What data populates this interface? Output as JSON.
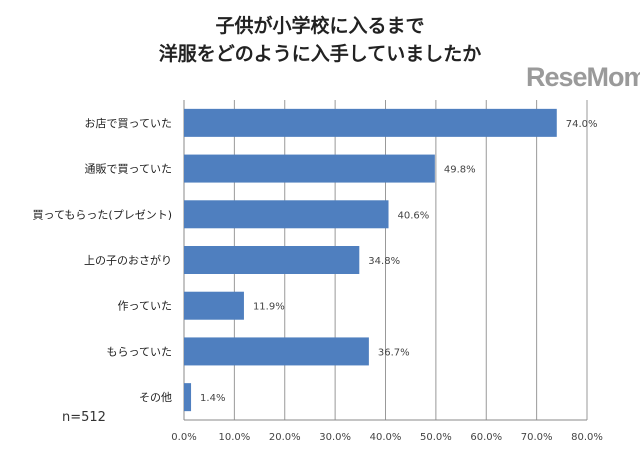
{
  "chart_data": {
    "type": "bar",
    "orientation": "horizontal",
    "title": [
      "子供が小学校に入るまで",
      "洋服をどのように入手していましたか"
    ],
    "categories": [
      "お店で買っていた",
      "通販で買っていた",
      "買ってもらった(プレゼント)",
      "上の子のおさがり",
      "作っていた",
      "もらっていた",
      "その他"
    ],
    "values": [
      74.0,
      49.8,
      40.6,
      34.8,
      11.9,
      36.7,
      1.4
    ],
    "data_labels": [
      "74.0%",
      "49.8%",
      "40.6%",
      "34.8%",
      "11.9%",
      "36.7%",
      "1.4%"
    ],
    "xlim": [
      0,
      80
    ],
    "xticks": [
      "0.0%",
      "10.0%",
      "20.0%",
      "30.0%",
      "40.0%",
      "50.0%",
      "60.0%",
      "70.0%",
      "80.0%"
    ],
    "grid": true,
    "bar_color": "#4f7fbf",
    "note": "n=512"
  },
  "watermark": "ReseMom"
}
